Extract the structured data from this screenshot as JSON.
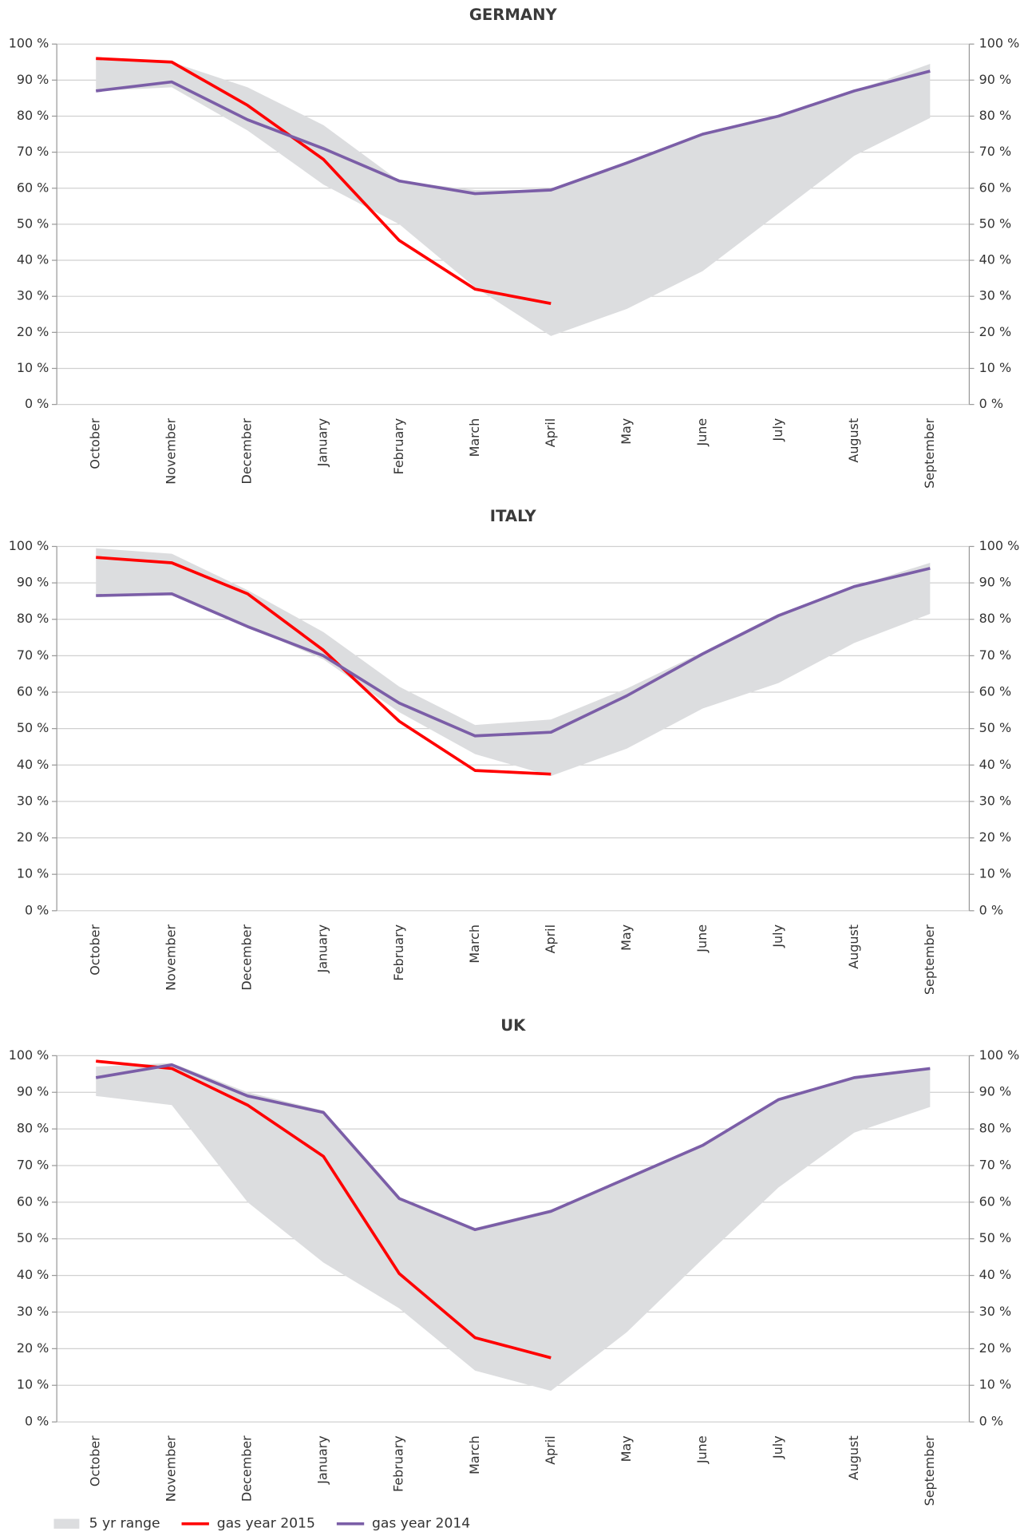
{
  "chart_data": [
    {
      "type": "line",
      "title": "GERMANY",
      "categories": [
        "October",
        "November",
        "December",
        "January",
        "February",
        "March",
        "April",
        "May",
        "June",
        "July",
        "August",
        "September"
      ],
      "ylim": [
        0,
        100
      ],
      "yticks": [
        {
          "value": 0,
          "label": "0 %"
        },
        {
          "value": 10,
          "label": "10 %"
        },
        {
          "value": 20,
          "label": "20 %"
        },
        {
          "value": 30,
          "label": "30 %"
        },
        {
          "value": 40,
          "label": "40 %"
        },
        {
          "value": 50,
          "label": "50 %"
        },
        {
          "value": 60,
          "label": "60 %"
        },
        {
          "value": 70,
          "label": "70 %"
        },
        {
          "value": 80,
          "label": "80 %"
        },
        {
          "value": 90,
          "label": "90 %"
        },
        {
          "value": 100,
          "label": "100 %"
        }
      ],
      "y2lim": [
        0,
        100
      ],
      "y2ticks": [
        {
          "value": 0,
          "label": "0 %"
        },
        {
          "value": 10,
          "label": "10 %"
        },
        {
          "value": 20,
          "label": "20 %"
        },
        {
          "value": 30,
          "label": "30 %"
        },
        {
          "value": 40,
          "label": "40 %"
        },
        {
          "value": 50,
          "label": "50 %"
        },
        {
          "value": 60,
          "label": "60 %"
        },
        {
          "value": 70,
          "label": "70 %"
        },
        {
          "value": 80,
          "label": "80 %"
        },
        {
          "value": 90,
          "label": "90 %"
        },
        {
          "value": 100,
          "label": "100 %"
        }
      ],
      "grid": true,
      "series": [
        {
          "name": "5 yr range",
          "color": "#dcdddf",
          "high": [
            96,
            95,
            88,
            77.5,
            62,
            59.5,
            59.5,
            67,
            75,
            80,
            87,
            94.5
          ],
          "low": [
            87,
            88,
            76,
            61,
            50,
            32.5,
            19,
            26.5,
            37,
            53,
            69,
            79.5
          ]
        },
        {
          "name": "gas year 2015",
          "color": "#ff0000",
          "values": [
            96,
            95,
            83,
            68,
            45.5,
            32,
            28,
            null,
            null,
            null,
            null,
            null
          ]
        },
        {
          "name": "gas year 2014",
          "color": "#7b5ea7",
          "values": [
            87,
            89.5,
            79,
            71,
            62,
            58.5,
            59.5,
            67,
            75,
            80,
            87,
            92.5
          ]
        }
      ]
    },
    {
      "type": "line",
      "title": "ITALY",
      "categories": [
        "October",
        "November",
        "December",
        "January",
        "February",
        "March",
        "April",
        "May",
        "June",
        "July",
        "August",
        "September"
      ],
      "ylim": [
        0,
        100
      ],
      "yticks": [
        {
          "value": 0,
          "label": "0 %"
        },
        {
          "value": 10,
          "label": "10 %"
        },
        {
          "value": 20,
          "label": "20 %"
        },
        {
          "value": 30,
          "label": "30 %"
        },
        {
          "value": 40,
          "label": "40 %"
        },
        {
          "value": 50,
          "label": "50 %"
        },
        {
          "value": 60,
          "label": "60 %"
        },
        {
          "value": 70,
          "label": "70 %"
        },
        {
          "value": 80,
          "label": "80 %"
        },
        {
          "value": 90,
          "label": "90 %"
        },
        {
          "value": 100,
          "label": "100 %"
        }
      ],
      "y2lim": [
        0,
        100
      ],
      "y2ticks": [
        {
          "value": 0,
          "label": "0 %"
        },
        {
          "value": 10,
          "label": "10 %"
        },
        {
          "value": 20,
          "label": "20 %"
        },
        {
          "value": 30,
          "label": "30 %"
        },
        {
          "value": 40,
          "label": "40 %"
        },
        {
          "value": 50,
          "label": "50 %"
        },
        {
          "value": 60,
          "label": "60 %"
        },
        {
          "value": 70,
          "label": "70 %"
        },
        {
          "value": 80,
          "label": "80 %"
        },
        {
          "value": 90,
          "label": "90 %"
        },
        {
          "value": 100,
          "label": "100 %"
        }
      ],
      "grid": true,
      "series": [
        {
          "color": "#dcdddf",
          "high": [
            99.5,
            98,
            88,
            76.5,
            61.5,
            51,
            52.5,
            61,
            71,
            81.5,
            89,
            95.5
          ],
          "low": [
            86.5,
            87,
            78,
            69,
            54.5,
            43,
            37,
            44.5,
            55.5,
            62.5,
            73.5,
            81.5
          ]
        },
        {
          "color": "#ff0000",
          "values": [
            97,
            95.5,
            87,
            71.5,
            52,
            38.5,
            37.5,
            null,
            null,
            null,
            null,
            null
          ]
        },
        {
          "color": "#7b5ea7",
          "values": [
            86.5,
            87,
            78,
            70,
            57,
            48,
            49,
            59,
            70.5,
            81,
            89,
            94
          ]
        }
      ]
    },
    {
      "type": "line",
      "title": "UK",
      "categories": [
        "October",
        "November",
        "December",
        "January",
        "February",
        "March",
        "April",
        "May",
        "June",
        "July",
        "August",
        "September"
      ],
      "ylim": [
        0,
        100
      ],
      "yticks": [
        {
          "value": 0,
          "label": "0 %"
        },
        {
          "value": 10,
          "label": "10 %"
        },
        {
          "value": 20,
          "label": "20 %"
        },
        {
          "value": 30,
          "label": "30 %"
        },
        {
          "value": 40,
          "label": "40 %"
        },
        {
          "value": 50,
          "label": "50 %"
        },
        {
          "value": 60,
          "label": "60 %"
        },
        {
          "value": 70,
          "label": "70 %"
        },
        {
          "value": 80,
          "label": "80 %"
        },
        {
          "value": 90,
          "label": "90 %"
        },
        {
          "value": 100,
          "label": "100 %"
        }
      ],
      "y2lim": [
        0,
        100
      ],
      "y2ticks": [
        {
          "value": 0,
          "label": "0 %"
        },
        {
          "value": 10,
          "label": "10 %"
        },
        {
          "value": 20,
          "label": "20 %"
        },
        {
          "value": 30,
          "label": "30 %"
        },
        {
          "value": 40,
          "label": "40 %"
        },
        {
          "value": 50,
          "label": "50 %"
        },
        {
          "value": 60,
          "label": "60 %"
        },
        {
          "value": 70,
          "label": "70 %"
        },
        {
          "value": 80,
          "label": "80 %"
        },
        {
          "value": 90,
          "label": "90 %"
        },
        {
          "value": 100,
          "label": "100 %"
        }
      ],
      "grid": true,
      "series": [
        {
          "color": "#dcdddf",
          "high": [
            97,
            98,
            90,
            85,
            61,
            53,
            58,
            66.5,
            75.5,
            88,
            94,
            96.5
          ],
          "low": [
            89,
            86.5,
            60,
            43.5,
            31,
            14,
            8.5,
            24.5,
            44.5,
            64,
            79,
            86
          ]
        },
        {
          "color": "#ff0000",
          "values": [
            98.5,
            96.5,
            86.5,
            72.5,
            40.5,
            23,
            17.5,
            null,
            null,
            null,
            null,
            null
          ]
        },
        {
          "color": "#7b5ea7",
          "values": [
            94,
            97.5,
            89,
            84.5,
            61,
            52.5,
            57.5,
            66.5,
            75.5,
            88,
            94,
            96.5
          ]
        }
      ]
    }
  ]
}
